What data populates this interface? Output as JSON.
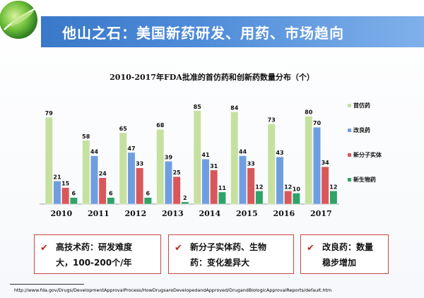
{
  "header": {
    "logo_icon": "green-leaf-logo-icon",
    "title": "他山之石：美国新药研发、用药、市场趋向"
  },
  "chart_data": {
    "type": "bar",
    "title": "2010-2017年FDA批准的首仿药和创新药数量分布（个）",
    "categories": [
      "2010",
      "2011",
      "2012",
      "2013",
      "2014",
      "2015",
      "2016",
      "2017"
    ],
    "series": [
      {
        "name": "首仿药",
        "color": "#c6e0a0",
        "values": [
          79,
          58,
          65,
          68,
          85,
          84,
          73,
          80
        ]
      },
      {
        "name": "改良药",
        "color": "#6f9ee0",
        "values": [
          21,
          44,
          47,
          39,
          41,
          44,
          43,
          70
        ]
      },
      {
        "name": "新分子实体",
        "color": "#d9575a",
        "values": [
          15,
          24,
          33,
          25,
          31,
          33,
          12,
          34
        ]
      },
      {
        "name": "新生物药",
        "color": "#2fa36a",
        "values": [
          6,
          6,
          6,
          2,
          11,
          12,
          10,
          12
        ]
      }
    ],
    "ylim": [
      0,
      90
    ],
    "legend_position": "right",
    "grid": false,
    "xlabel": "",
    "ylabel": ""
  },
  "callouts": [
    {
      "check": "✔",
      "text_line1": "高技术药：研发难度",
      "text_line2": "大，100-200个/年"
    },
    {
      "check": "✔",
      "text_line1": "新分子实体药、生物",
      "text_line2": "药：变化差异大"
    },
    {
      "check": "✔",
      "text_line1": "改良药：数量",
      "text_line2": "稳步增加"
    }
  ],
  "footer": {
    "url": "http://www.fda.gov/Drugs/DevelopmentApprovalProcess/HowDrugsareDevelopedandApproved/DrugandBiologicApprovalReports/default.htm"
  }
}
